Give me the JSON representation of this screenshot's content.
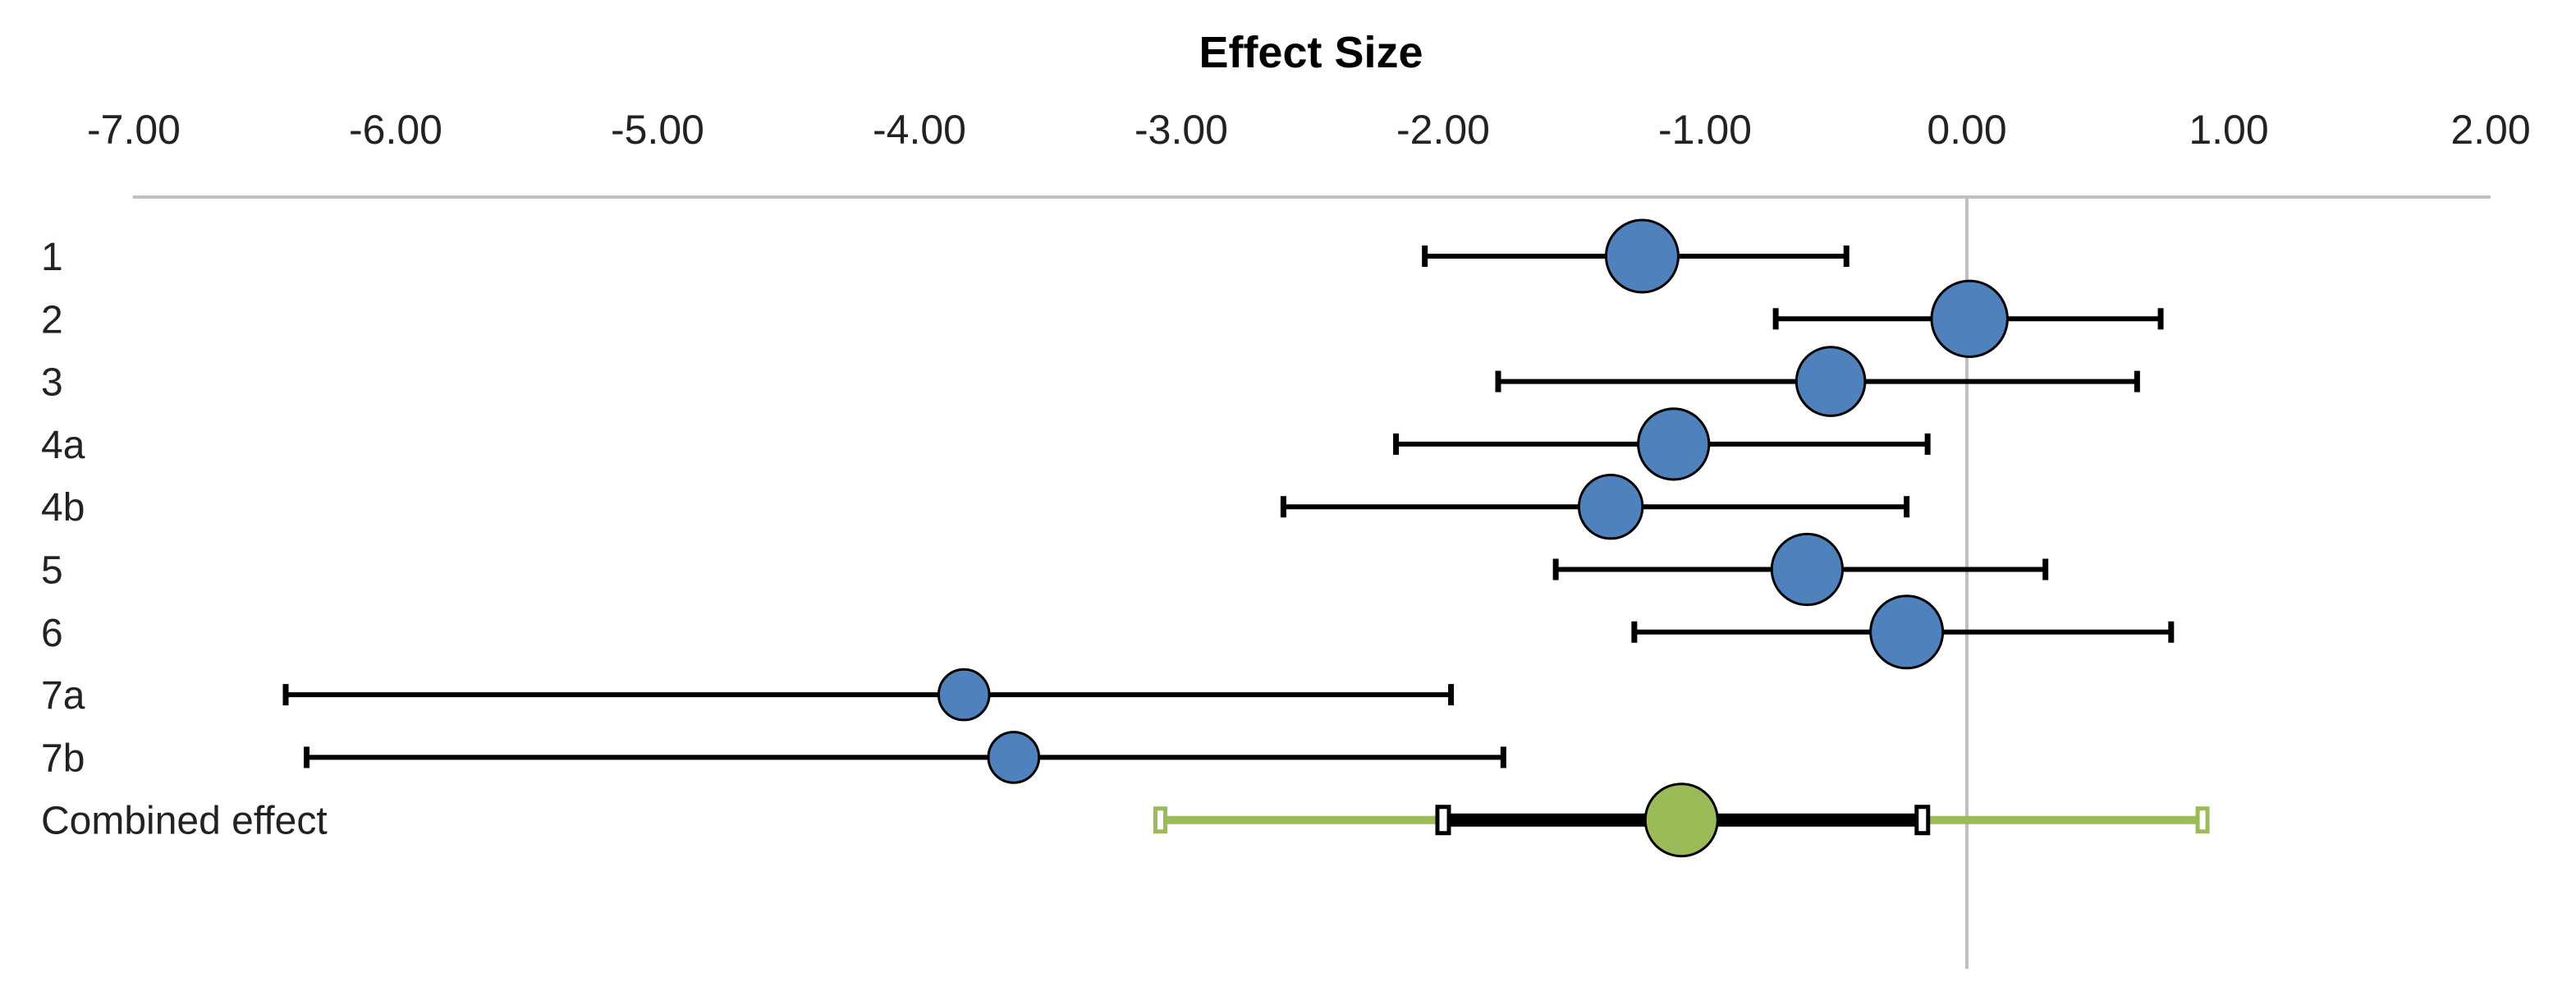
{
  "chart_data": {
    "type": "forest",
    "title": "Effect Size",
    "xlabel": "Effect Size",
    "ylabel": "",
    "xlim": [
      -7.0,
      2.0
    ],
    "x_ticks": [
      -7,
      -6,
      -5,
      -4,
      -3,
      -2,
      -1,
      0,
      1,
      2
    ],
    "tick_labels": [
      "-7.00",
      "-6.00",
      "-5.00",
      "-4.00",
      "-3.00",
      "-2.00",
      "-1.00",
      "0.00",
      "1.00",
      "2.00"
    ],
    "reference_line": 0,
    "studies": [
      {
        "label": "1",
        "estimate": -1.24,
        "ci_low": -2.07,
        "ci_high": -0.46,
        "weight": 1.0
      },
      {
        "label": "2",
        "estimate": 0.01,
        "ci_low": -0.73,
        "ci_high": 0.74,
        "weight": 1.05
      },
      {
        "label": "3",
        "estimate": -0.52,
        "ci_low": -1.79,
        "ci_high": 0.65,
        "weight": 0.95
      },
      {
        "label": "4a",
        "estimate": -1.12,
        "ci_low": -2.18,
        "ci_high": -0.15,
        "weight": 0.98
      },
      {
        "label": "4b",
        "estimate": -1.36,
        "ci_low": -2.61,
        "ci_high": -0.23,
        "weight": 0.88
      },
      {
        "label": "5",
        "estimate": -0.61,
        "ci_low": -1.57,
        "ci_high": 0.3,
        "weight": 0.98
      },
      {
        "label": "6",
        "estimate": -0.23,
        "ci_low": -1.27,
        "ci_high": 0.78,
        "weight": 1.0
      },
      {
        "label": "7a",
        "estimate": -3.83,
        "ci_low": -6.42,
        "ci_high": -1.97,
        "weight": 0.7
      },
      {
        "label": "7b",
        "estimate": -3.64,
        "ci_low": -6.34,
        "ci_high": -1.77,
        "weight": 0.7
      }
    ],
    "combined": {
      "label": "Combined effect",
      "estimate": -1.09,
      "ci_low": -2.0,
      "ci_high": -0.17,
      "pi_low": -3.08,
      "pi_high": 0.9
    },
    "colors": {
      "study_marker": "#4f81bd",
      "combined_marker": "#9bbb59",
      "prediction_interval": "#9bbb59",
      "interval": "#000000",
      "axis": "#bfbfbf"
    }
  }
}
